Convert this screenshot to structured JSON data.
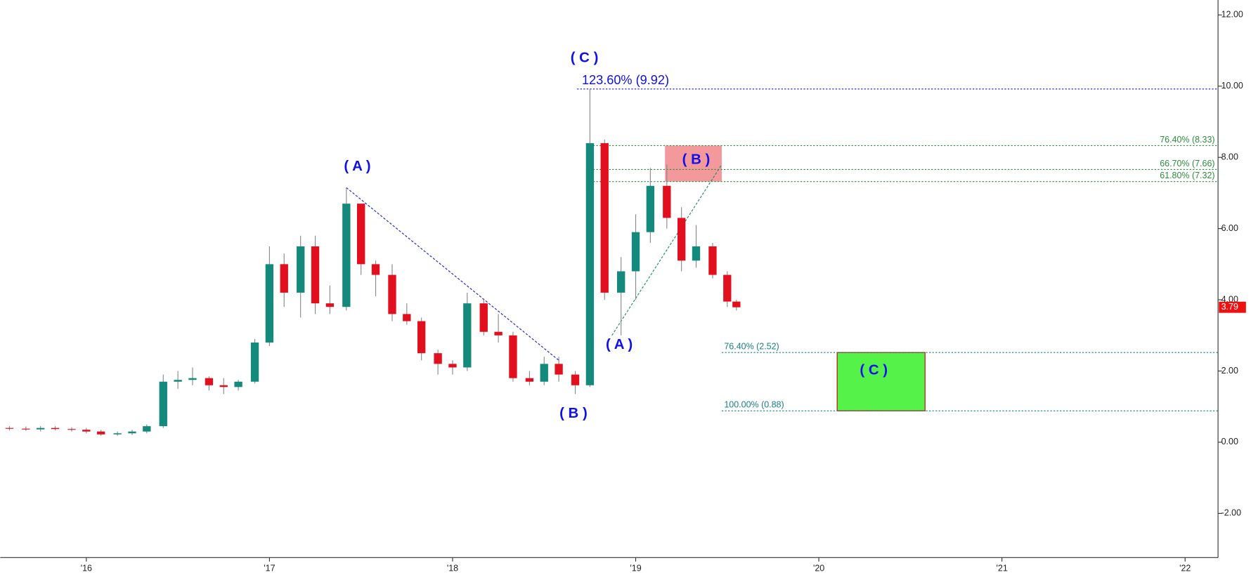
{
  "chart_data": {
    "type": "candlestick",
    "x": [
      2015.58,
      2015.67,
      2015.75,
      2015.83,
      2015.92,
      2016.0,
      2016.08,
      2016.17,
      2016.25,
      2016.33,
      2016.42,
      2016.5,
      2016.58,
      2016.67,
      2016.75,
      2016.83,
      2016.92,
      2017.0,
      2017.08,
      2017.17,
      2017.25,
      2017.33,
      2017.42,
      2017.5,
      2017.58,
      2017.67,
      2017.75,
      2017.83,
      2017.92,
      2018.0,
      2018.08,
      2018.17,
      2018.25,
      2018.33,
      2018.42,
      2018.5,
      2018.58,
      2018.67,
      2018.75,
      2018.83,
      2018.92,
      2019.0,
      2019.08,
      2019.17,
      2019.25,
      2019.33,
      2019.42,
      2019.5,
      2019.55
    ],
    "open": [
      0.4,
      0.38,
      0.36,
      0.4,
      0.37,
      0.35,
      0.3,
      0.22,
      0.25,
      0.3,
      0.45,
      1.7,
      1.75,
      1.8,
      1.6,
      1.55,
      1.7,
      2.8,
      5.0,
      4.2,
      5.5,
      3.9,
      3.8,
      6.7,
      5.0,
      4.7,
      3.6,
      3.4,
      2.5,
      2.2,
      2.1,
      3.9,
      3.1,
      3.0,
      1.8,
      1.7,
      2.2,
      1.9,
      1.6,
      8.4,
      4.2,
      4.8,
      5.9,
      7.2,
      6.3,
      5.1,
      5.5,
      4.7,
      3.95
    ],
    "high": [
      0.45,
      0.44,
      0.45,
      0.45,
      0.42,
      0.4,
      0.35,
      0.3,
      0.35,
      0.5,
      1.9,
      2.0,
      2.1,
      1.85,
      1.8,
      1.75,
      2.9,
      5.5,
      5.3,
      5.8,
      5.8,
      4.4,
      7.15,
      6.7,
      5.1,
      5.0,
      3.9,
      3.5,
      2.6,
      2.3,
      4.2,
      4.0,
      3.6,
      3.1,
      2.0,
      2.4,
      2.4,
      2.0,
      9.92,
      8.5,
      5.2,
      6.4,
      7.7,
      7.8,
      6.6,
      6.1,
      5.6,
      4.8,
      4.0
    ],
    "low": [
      0.33,
      0.32,
      0.3,
      0.33,
      0.3,
      0.25,
      0.18,
      0.18,
      0.2,
      0.25,
      0.4,
      1.5,
      1.6,
      1.45,
      1.35,
      1.45,
      1.65,
      2.7,
      3.8,
      3.5,
      3.6,
      3.6,
      3.7,
      4.7,
      4.1,
      3.4,
      3.3,
      2.3,
      1.9,
      1.9,
      2.0,
      3.0,
      2.8,
      1.7,
      1.6,
      1.6,
      1.7,
      1.35,
      1.55,
      4.0,
      3.0,
      4.0,
      5.6,
      6.0,
      4.8,
      4.9,
      4.6,
      3.8,
      3.7
    ],
    "close": [
      0.38,
      0.36,
      0.4,
      0.37,
      0.35,
      0.3,
      0.22,
      0.25,
      0.3,
      0.45,
      1.7,
      1.75,
      1.8,
      1.6,
      1.55,
      1.7,
      2.8,
      5.0,
      4.2,
      5.5,
      3.9,
      3.8,
      6.7,
      5.0,
      4.7,
      3.6,
      3.4,
      2.5,
      2.2,
      2.1,
      3.9,
      3.1,
      3.0,
      1.8,
      1.7,
      2.2,
      1.9,
      1.6,
      8.4,
      4.2,
      4.8,
      5.9,
      7.2,
      6.3,
      5.1,
      5.5,
      4.7,
      3.95,
      3.79
    ],
    "up_color": "#138a7c",
    "down_color": "#e2101e",
    "xlim": [
      2015.53,
      2022.18
    ],
    "xticks": [
      {
        "value": 2016,
        "label": "'16"
      },
      {
        "value": 2017,
        "label": "'17"
      },
      {
        "value": 2018,
        "label": "'18"
      },
      {
        "value": 2019,
        "label": "'19"
      },
      {
        "value": 2020,
        "label": "'20"
      },
      {
        "value": 2021,
        "label": "'21"
      },
      {
        "value": 2022,
        "label": "'22"
      }
    ],
    "ylim": [
      -3.24,
      12.42
    ],
    "yticks": [
      {
        "value": -2,
        "label": "-2.00"
      },
      {
        "value": 0,
        "label": "0.00"
      },
      {
        "value": 2,
        "label": "2.00"
      },
      {
        "value": 4,
        "label": "4.00"
      },
      {
        "value": 6,
        "label": "6.00"
      },
      {
        "value": 8,
        "label": "8.00"
      },
      {
        "value": 10,
        "label": "10.00"
      },
      {
        "value": 12,
        "label": "12.00"
      }
    ],
    "last_price": 3.79,
    "last_price_color": "#ee1111",
    "fib_levels": [
      {
        "label": "123.60% (9.92)",
        "value": 9.92,
        "x_start": 2018.68,
        "color": "#1010e0",
        "label_position": "left"
      },
      {
        "label": "76.40% (8.33)",
        "value": 8.33,
        "x_start": 2018.75,
        "color": "#2e8b3e",
        "label_position": "right"
      },
      {
        "label": "66.70% (7.66)",
        "value": 7.66,
        "x_start": 2018.75,
        "color": "#2e8b3e",
        "label_position": "right"
      },
      {
        "label": "61.80% (7.32)",
        "value": 7.32,
        "x_start": 2018.75,
        "color": "#2e8b3e",
        "label_position": "right"
      },
      {
        "label": "76.40% (2.52)",
        "value": 2.52,
        "x_start": 2019.47,
        "color": "#1a7f80",
        "label_position": "left"
      },
      {
        "label": "100.00% (0.88)",
        "value": 0.88,
        "x_start": 2019.47,
        "color": "#1a7f80",
        "label_position": "left"
      }
    ],
    "zones": [
      {
        "x": [
          2019.16,
          2019.47
        ],
        "y": [
          7.32,
          8.33
        ],
        "color": "#f4999b"
      },
      {
        "x": [
          2020.1,
          2020.58
        ],
        "y": [
          0.88,
          2.52
        ],
        "color": "#55f24a"
      }
    ],
    "trend_lines": [
      {
        "x": [
          2017.42,
          2018.58
        ],
        "y": [
          7.15,
          2.3
        ],
        "color": "#2020d0"
      },
      {
        "x": [
          2018.87,
          2019.47
        ],
        "y": [
          3.0,
          7.8
        ],
        "color": "#1a8a6a"
      }
    ],
    "annotations": [
      {
        "text": "( C )",
        "x": 2018.72,
        "y": 10.78
      },
      {
        "text": "( A )",
        "x": 2017.48,
        "y": 7.74
      },
      {
        "text": "( B )",
        "x": 2018.66,
        "y": 0.8
      },
      {
        "text": "( A )",
        "x": 2018.91,
        "y": 2.73
      },
      {
        "text": "( B )",
        "x": 2019.33,
        "y": 7.92
      },
      {
        "text": "( C )",
        "x": 2020.3,
        "y": 2.01
      }
    ]
  }
}
